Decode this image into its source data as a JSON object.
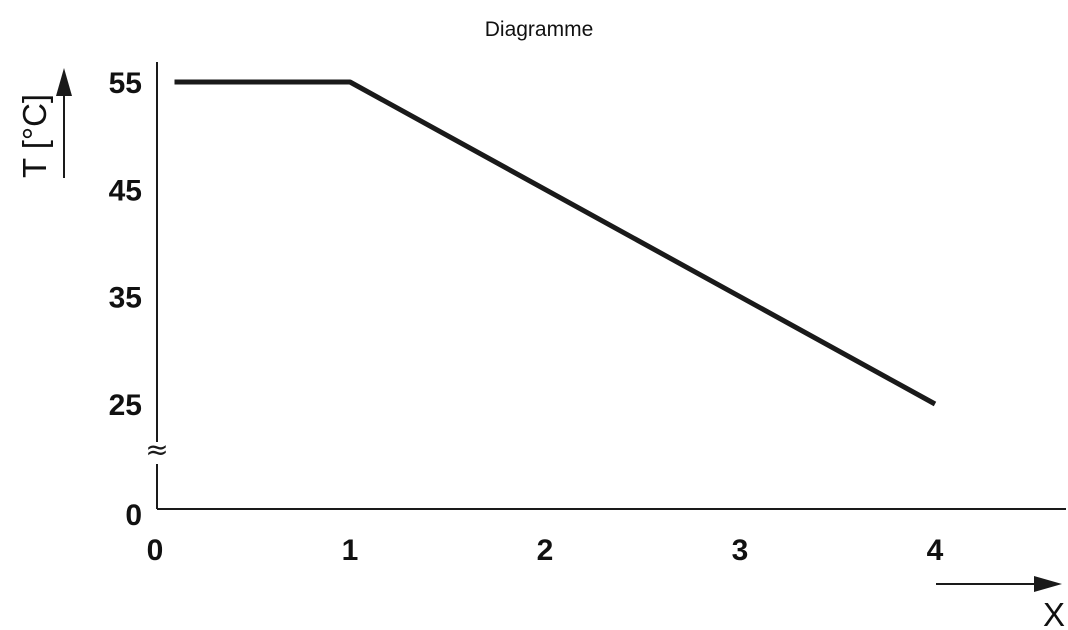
{
  "chart_data": {
    "type": "line",
    "title": "Diagramme",
    "xlabel": "X",
    "ylabel": "T [°C]",
    "x_ticks": [
      "0",
      "1",
      "2",
      "3",
      "4"
    ],
    "y_ticks": [
      "0",
      "25",
      "35",
      "45",
      "55"
    ],
    "xlim": [
      0,
      4.6
    ],
    "ylim_broken": {
      "lower_segment": [
        0,
        0
      ],
      "upper_segment": [
        25,
        55
      ],
      "break_marker": "≈"
    },
    "grid": false,
    "legend": "none",
    "series": [
      {
        "x": [
          0.1,
          1,
          4
        ],
        "y": [
          55,
          55,
          25
        ]
      }
    ],
    "colors": {
      "line": "#1a1a1a",
      "axis": "#1a1a1a",
      "background": "#ffffff"
    }
  }
}
